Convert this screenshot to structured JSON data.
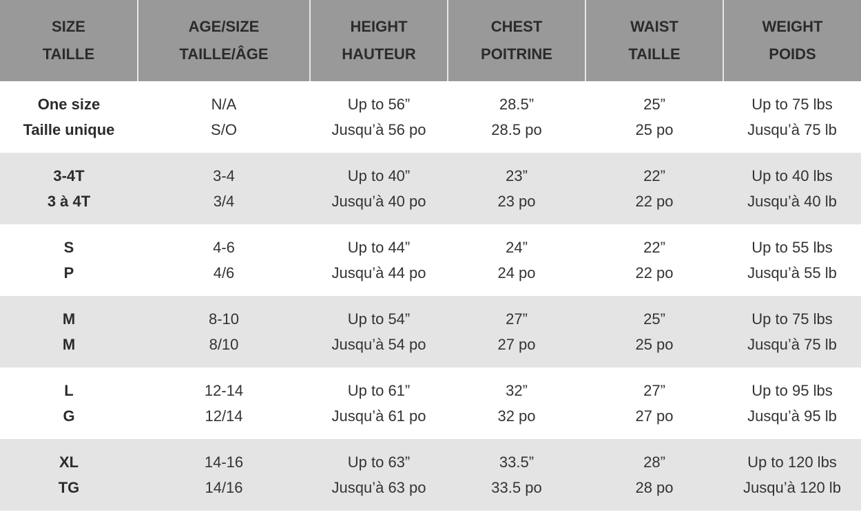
{
  "header": [
    {
      "en": "SIZE",
      "fr": "TAILLE"
    },
    {
      "en": "AGE/SIZE",
      "fr": "TAILLE/ÂGE"
    },
    {
      "en": "HEIGHT",
      "fr": "HAUTEUR"
    },
    {
      "en": "CHEST",
      "fr": "POITRINE"
    },
    {
      "en": "WAIST",
      "fr": "TAILLE"
    },
    {
      "en": "WEIGHT",
      "fr": "POIDS"
    }
  ],
  "rows": [
    [
      [
        "One size",
        "Taille unique"
      ],
      [
        "N/A",
        "S/O"
      ],
      [
        "Up to 56”",
        "Jusqu’à 56 po"
      ],
      [
        "28.5”",
        "28.5 po"
      ],
      [
        "25”",
        "25 po"
      ],
      [
        "Up to 75 lbs",
        "Jusqu’à 75 lb"
      ]
    ],
    [
      [
        "3-4T",
        "3 à 4T"
      ],
      [
        "3-4",
        "3/4"
      ],
      [
        "Up to 40”",
        "Jusqu’à 40 po"
      ],
      [
        "23”",
        "23 po"
      ],
      [
        "22”",
        "22 po"
      ],
      [
        "Up to 40 lbs",
        "Jusqu’à 40 lb"
      ]
    ],
    [
      [
        "S",
        "P"
      ],
      [
        "4-6",
        "4/6"
      ],
      [
        "Up to 44”",
        "Jusqu’à 44 po"
      ],
      [
        "24”",
        "24 po"
      ],
      [
        "22”",
        "22 po"
      ],
      [
        "Up to 55 lbs",
        "Jusqu’à 55 lb"
      ]
    ],
    [
      [
        "M",
        "M"
      ],
      [
        "8-10",
        "8/10"
      ],
      [
        "Up to 54”",
        "Jusqu’à 54 po"
      ],
      [
        "27”",
        "27 po"
      ],
      [
        "25”",
        "25 po"
      ],
      [
        "Up to 75 lbs",
        "Jusqu’à 75 lb"
      ]
    ],
    [
      [
        "L",
        "G"
      ],
      [
        "12-14",
        "12/14"
      ],
      [
        "Up to 61”",
        "Jusqu’à 61 po"
      ],
      [
        "32”",
        "32 po"
      ],
      [
        "27”",
        "27 po"
      ],
      [
        "Up to 95 lbs",
        "Jusqu’à 95 lb"
      ]
    ],
    [
      [
        "XL",
        "TG"
      ],
      [
        "14-16",
        "14/16"
      ],
      [
        "Up to 63”",
        "Jusqu’à 63 po"
      ],
      [
        "33.5”",
        "33.5 po"
      ],
      [
        "28”",
        "28 po"
      ],
      [
        "Up to 120 lbs",
        "Jusqu’à 120 lb"
      ]
    ]
  ],
  "colors": {
    "header_bg": "#999999",
    "alt_row_bg": "#e4e4e4",
    "text": "#333333"
  }
}
